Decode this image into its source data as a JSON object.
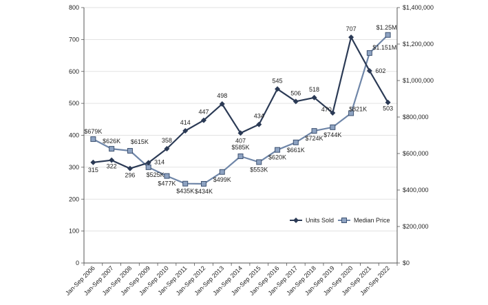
{
  "chart_data": {
    "type": "line",
    "title": "",
    "xlabel": "",
    "ylabel": "",
    "y2label": "",
    "grid": true,
    "legend_position": "bottom-right",
    "categories": [
      "Jan-Sep 2006",
      "Jan-Sep 2007",
      "Jan-Sep 2008",
      "Jan-Sep 2009",
      "Jan-Sep 2010",
      "Jan-Sep 2011",
      "Jan-Sep 2012",
      "Jan-Sep 2013",
      "Jan-Sep 2014",
      "Jan-Sep 2015",
      "Jan-Sep 2016",
      "Jan-Sep 2017",
      "Jan-Sep 2018",
      "Jan-Sep 2019",
      "Jan-Sep 2020",
      "Jan-Sep 2021",
      "Jan-Sep 2022"
    ],
    "ylim": [
      0,
      800
    ],
    "y_ticks": [
      0,
      100,
      200,
      300,
      400,
      500,
      600,
      700,
      800
    ],
    "y_tick_labels": [
      "0",
      "100",
      "200",
      "300",
      "400",
      "500",
      "600",
      "700",
      "800"
    ],
    "y2lim": [
      0,
      1400000
    ],
    "y2_ticks": [
      0,
      200000,
      400000,
      600000,
      800000,
      1000000,
      1200000,
      1400000
    ],
    "y2_tick_labels": [
      "$0",
      "$200,000",
      "$400,000",
      "$600,000",
      "$800,000",
      "$1,000,000",
      "$1,200,000",
      "$1,400,000"
    ],
    "series": [
      {
        "name": "Units Sold",
        "axis": "left",
        "color": "#2b3a55",
        "marker": "diamond",
        "values": [
          315,
          322,
          296,
          314,
          358,
          414,
          447,
          498,
          407,
          434,
          545,
          506,
          518,
          470,
          707,
          602,
          503
        ],
        "labels": [
          "315",
          "322",
          "296",
          "314",
          "358",
          "414",
          "447",
          "498",
          "407",
          "434",
          "545",
          "506",
          "518",
          "470",
          "707",
          "602",
          "503"
        ]
      },
      {
        "name": "Median Price",
        "axis": "right",
        "color": "#6f86a8",
        "marker": "square",
        "values": [
          679000,
          626000,
          615000,
          525000,
          477000,
          435000,
          434000,
          499000,
          585000,
          553000,
          620000,
          661000,
          724000,
          744000,
          821000,
          1151000,
          1250000
        ],
        "labels": [
          "$679K",
          "$626K",
          "$615K",
          "$525K",
          "$477K",
          "$435K",
          "$434K",
          "$499K",
          "$585K",
          "$553K",
          "$620K",
          "$661K",
          "$724K",
          "$744K",
          "$821K",
          "$1.151M",
          "$1.25M"
        ]
      }
    ]
  }
}
